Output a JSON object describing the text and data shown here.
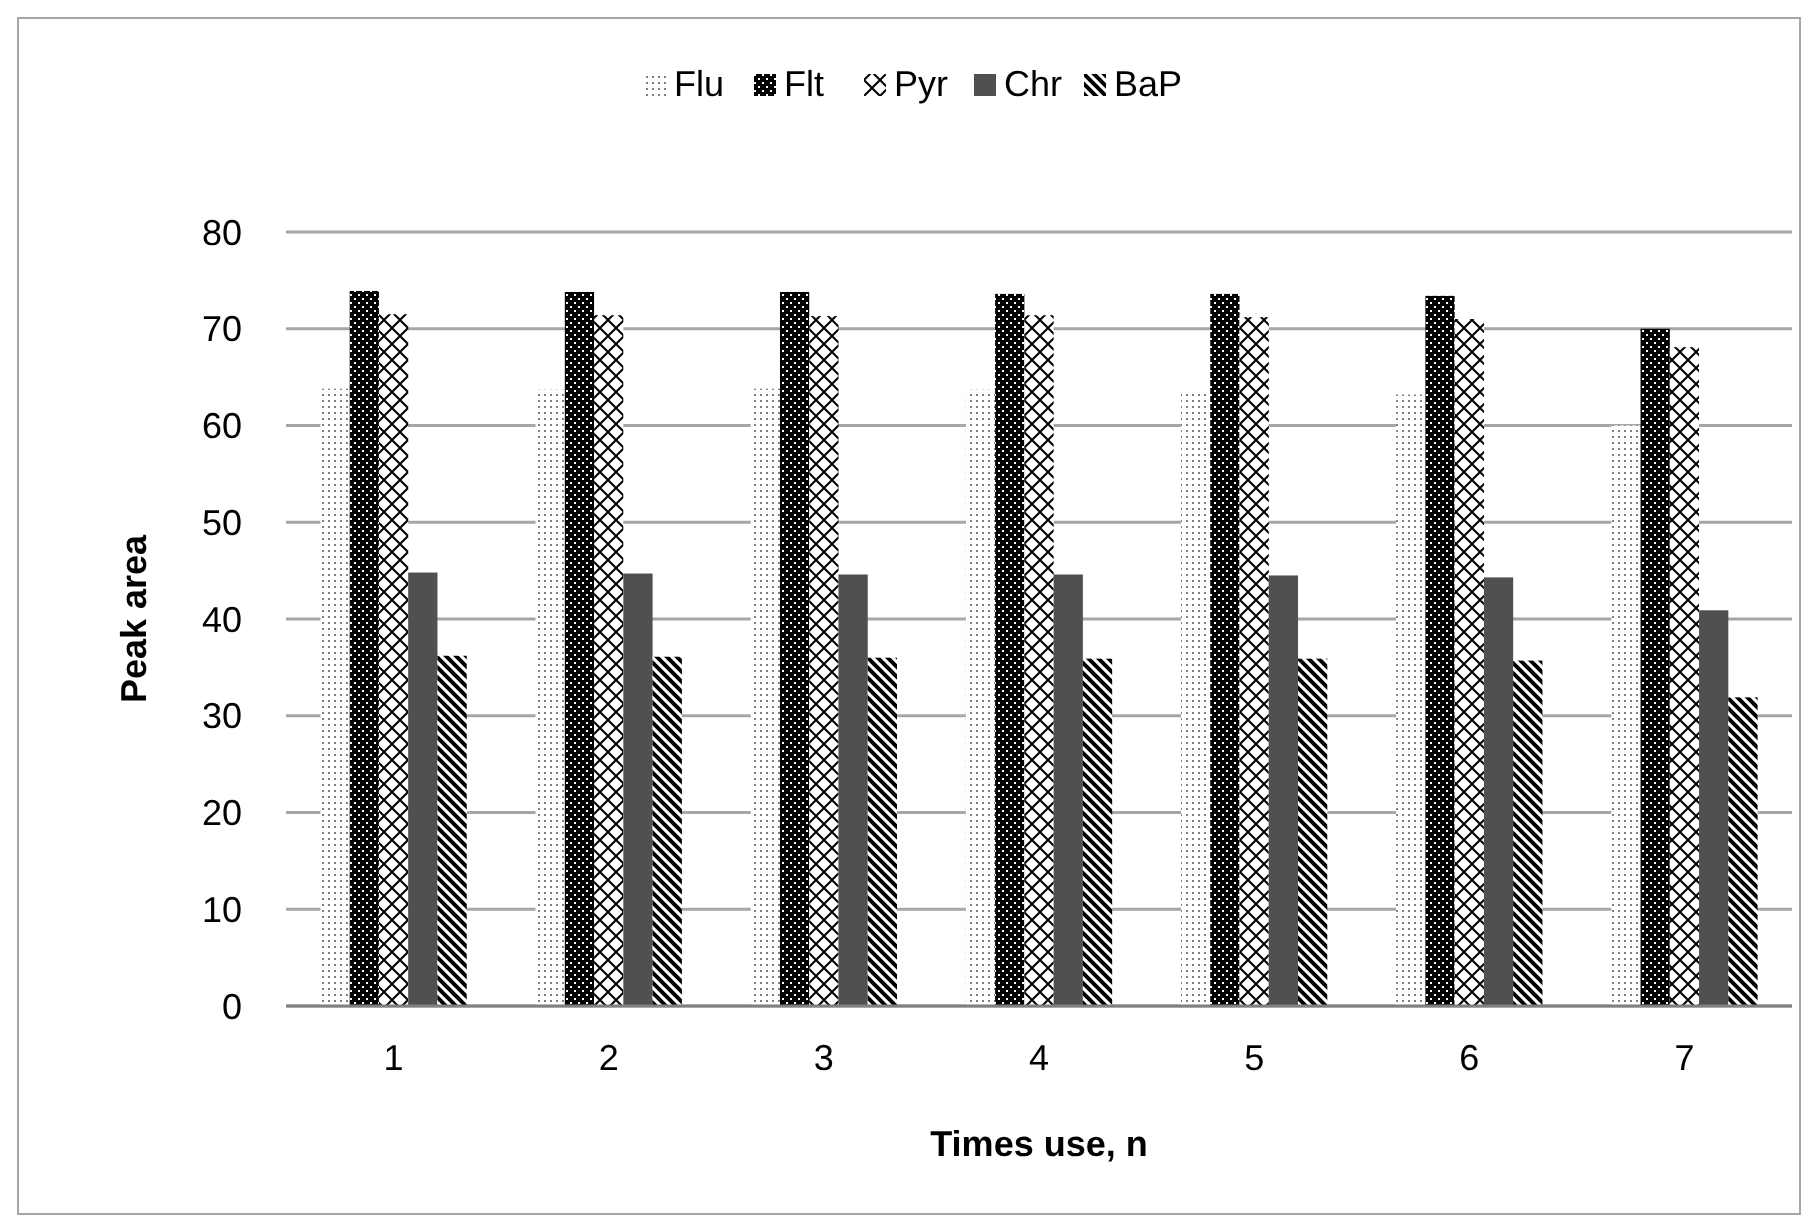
{
  "chart_data": {
    "type": "bar",
    "xlabel": "Times use, n",
    "ylabel": "Peak area",
    "categories": [
      "1",
      "2",
      "3",
      "4",
      "5",
      "6",
      "7"
    ],
    "series": [
      {
        "name": "Flu",
        "color": "#7f7f7f",
        "values": [
          63.8,
          63.7,
          63.8,
          63.7,
          63.4,
          63.2,
          60.0
        ]
      },
      {
        "name": "Flt",
        "color": "#000000",
        "values": [
          73.9,
          73.8,
          73.8,
          73.6,
          73.6,
          73.4,
          70.0
        ]
      },
      {
        "name": "Pyr",
        "color": "#000000",
        "values": [
          71.5,
          71.4,
          71.3,
          71.4,
          71.2,
          71.0,
          68.1
        ]
      },
      {
        "name": "Chr",
        "color": "#505050",
        "values": [
          44.8,
          44.7,
          44.6,
          44.6,
          44.5,
          44.3,
          40.9
        ]
      },
      {
        "name": "BaP",
        "color": "#000000",
        "values": [
          36.2,
          36.1,
          36.0,
          35.9,
          35.9,
          35.7,
          31.9
        ]
      }
    ],
    "ylim": [
      0,
      80
    ],
    "yticks": [
      0,
      10,
      20,
      30,
      40,
      50,
      60,
      70,
      80
    ],
    "grid": "y",
    "legend": "top"
  }
}
